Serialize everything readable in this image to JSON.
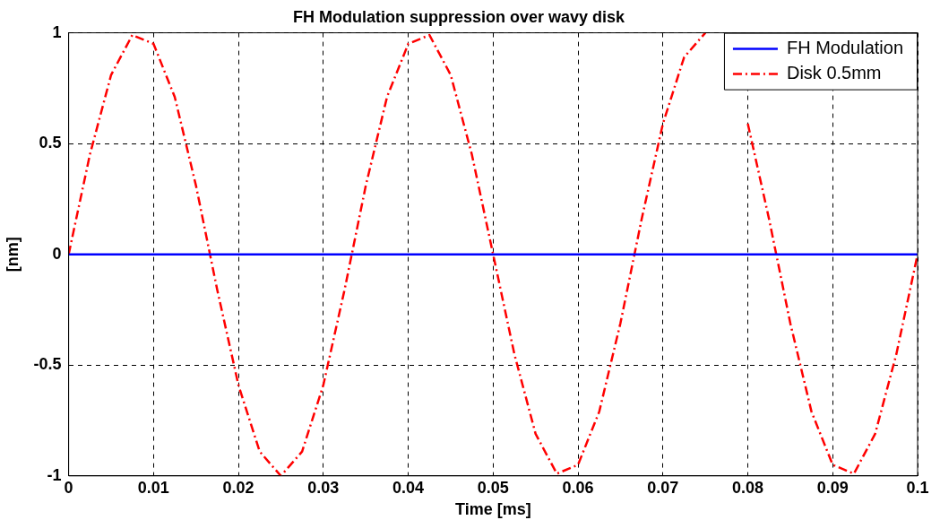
{
  "chart_data": {
    "type": "line",
    "title": "FH Modulation suppression over wavy disk",
    "xlabel": "Time [ms]",
    "ylabel": "[nm]",
    "xlim": [
      0,
      0.1
    ],
    "xticks": [
      0,
      0.01,
      0.02,
      0.03,
      0.04,
      0.05,
      0.06,
      0.07,
      0.08,
      0.09,
      0.1
    ],
    "ylim": [
      -1,
      1
    ],
    "yticks": [
      -1,
      -0.5,
      0,
      0.5,
      1
    ],
    "grid": true,
    "legend": "top right",
    "marker": "none",
    "series": [
      {
        "name": "FH Modulation",
        "color": "#0000ff",
        "line_style": "solid",
        "x": [
          0,
          0.1
        ],
        "values": [
          0,
          0
        ]
      },
      {
        "name": "Disk 0.5mm",
        "color": "#ff0000",
        "line_style": "dashed",
        "x": [
          0,
          0.0025,
          0.005,
          0.0075,
          0.01,
          0.0125,
          0.015,
          0.0175,
          0.02,
          0.0225,
          0.025,
          0.0275,
          0.03,
          0.0325,
          0.035,
          0.0375,
          0.04,
          0.0425,
          0.045,
          0.0475,
          0.05,
          0.0525,
          0.055,
          0.0575,
          0.06,
          0.0625,
          0.065,
          0.0675,
          0.07,
          0.0725,
          0.075,
          0.0775,
          0.08,
          0.0825,
          0.085,
          0.0875,
          0.09,
          0.0925,
          0.095,
          0.0975,
          0.1
        ],
        "values": [
          0,
          0.45,
          0.81,
          0.99,
          0.95,
          0.71,
          0.31,
          -0.16,
          -0.59,
          -0.89,
          -1,
          -0.89,
          -0.59,
          -0.16,
          0.31,
          0.71,
          0.95,
          0.99,
          0.81,
          0.45,
          0,
          -0.45,
          -0.81,
          -0.99,
          -0.95,
          -0.71,
          -0.31,
          0.16,
          0.59,
          0.89,
          1,
          null,
          0.59,
          0.16,
          -0.31,
          -0.71,
          -0.95,
          -0.99,
          -0.81,
          -0.45,
          0
        ]
      }
    ]
  }
}
